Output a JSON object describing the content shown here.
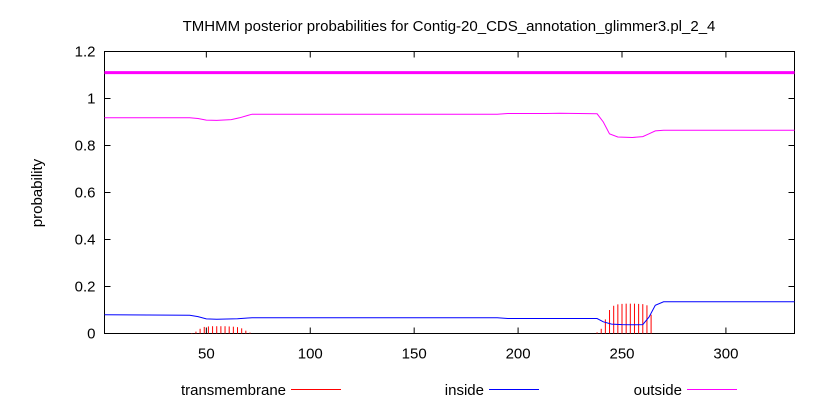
{
  "chart_data": {
    "type": "line",
    "title": "TMHMM posterior probabilities for Contig-20_CDS_annotation_glimmer3.pl_2_4",
    "xlabel": "",
    "ylabel": "probability",
    "xlim": [
      1,
      333
    ],
    "ylim": [
      0,
      1.2
    ],
    "xticks": [
      50,
      100,
      150,
      200,
      250,
      300
    ],
    "yticks": [
      0,
      0.2,
      0.4,
      0.6,
      0.8,
      1,
      1.2
    ],
    "ytick_labels": [
      "0",
      "0.2",
      "0.4",
      "0.6",
      "0.8",
      "1",
      "1.2"
    ],
    "grid": false,
    "legend_position": "bottom",
    "reference_line": {
      "y": 1.11,
      "color": "#ff00ff"
    },
    "series": [
      {
        "name": "transmembrane",
        "style": "impulses",
        "color": "#ff0000",
        "x": [
          43,
          45,
          47,
          49,
          51,
          53,
          55,
          57,
          59,
          61,
          63,
          65,
          67,
          69,
          71,
          238,
          240,
          242,
          244,
          246,
          248,
          250,
          252,
          254,
          256,
          258,
          260,
          262,
          264
        ],
        "values": [
          0.002,
          0.008,
          0.02,
          0.028,
          0.03,
          0.031,
          0.031,
          0.031,
          0.031,
          0.03,
          0.029,
          0.027,
          0.022,
          0.012,
          0.004,
          0.005,
          0.02,
          0.06,
          0.1,
          0.118,
          0.124,
          0.126,
          0.127,
          0.127,
          0.127,
          0.126,
          0.125,
          0.12,
          0.08
        ]
      },
      {
        "name": "inside",
        "style": "line",
        "color": "#0000ff",
        "x": [
          1,
          42,
          46,
          50,
          55,
          65,
          70,
          72,
          100,
          150,
          190,
          195,
          220,
          238,
          241,
          245,
          250,
          255,
          260,
          263,
          266,
          270,
          300,
          333
        ],
        "values": [
          0.08,
          0.078,
          0.072,
          0.062,
          0.061,
          0.063,
          0.066,
          0.067,
          0.067,
          0.067,
          0.067,
          0.064,
          0.064,
          0.064,
          0.05,
          0.04,
          0.038,
          0.037,
          0.038,
          0.07,
          0.12,
          0.135,
          0.135,
          0.135
        ]
      },
      {
        "name": "outside",
        "style": "line",
        "color": "#ff00ff",
        "x": [
          1,
          42,
          46,
          50,
          55,
          62,
          66,
          70,
          72,
          100,
          150,
          190,
          195,
          213,
          220,
          238,
          241,
          244,
          248,
          255,
          260,
          263,
          266,
          270,
          300,
          333
        ],
        "values": [
          0.918,
          0.918,
          0.915,
          0.908,
          0.907,
          0.91,
          0.918,
          0.928,
          0.933,
          0.933,
          0.933,
          0.933,
          0.936,
          0.936,
          0.937,
          0.935,
          0.9,
          0.85,
          0.836,
          0.834,
          0.838,
          0.85,
          0.862,
          0.865,
          0.865,
          0.865
        ]
      }
    ]
  }
}
